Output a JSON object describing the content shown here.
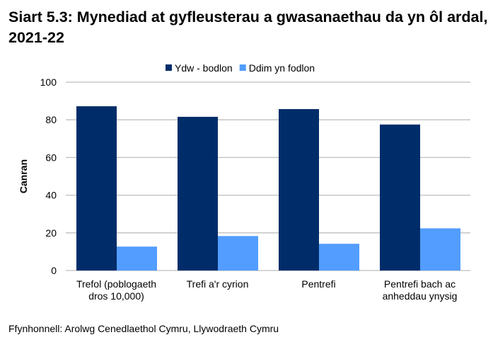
{
  "title": "Siart 5.3: Mynediad at gyfleusterau a gwasanaethau da yn ôl ardal, 2021-22",
  "source": "Ffynhonnell: Arolwg Cenedlaethol Cymru, Llywodraeth Cymru",
  "chart_data": {
    "type": "bar",
    "title": "Siart 5.3: Mynediad at gyfleusterau a gwasanaethau da yn ôl ardal, 2021-22",
    "ylabel": "Canran",
    "xlabel": "",
    "ylim": [
      0,
      100
    ],
    "yticks": [
      0,
      20,
      40,
      60,
      80,
      100
    ],
    "grid": true,
    "legend": "top",
    "categories": [
      [
        "Trefol (poblogaeth",
        "dros 10,000)"
      ],
      [
        "Trefi a'r cyrion"
      ],
      [
        "Pentrefi"
      ],
      [
        "Pentrefi bach ac",
        "anheddau ynysig"
      ]
    ],
    "series": [
      {
        "name": "Ydw - bodlon",
        "color": "#002D6A",
        "values": [
          87.2,
          81.6,
          85.7,
          77.5
        ]
      },
      {
        "name": "Ddim yn fodlon",
        "color": "#529DFF",
        "values": [
          12.7,
          18.3,
          14.2,
          22.4
        ]
      }
    ]
  }
}
